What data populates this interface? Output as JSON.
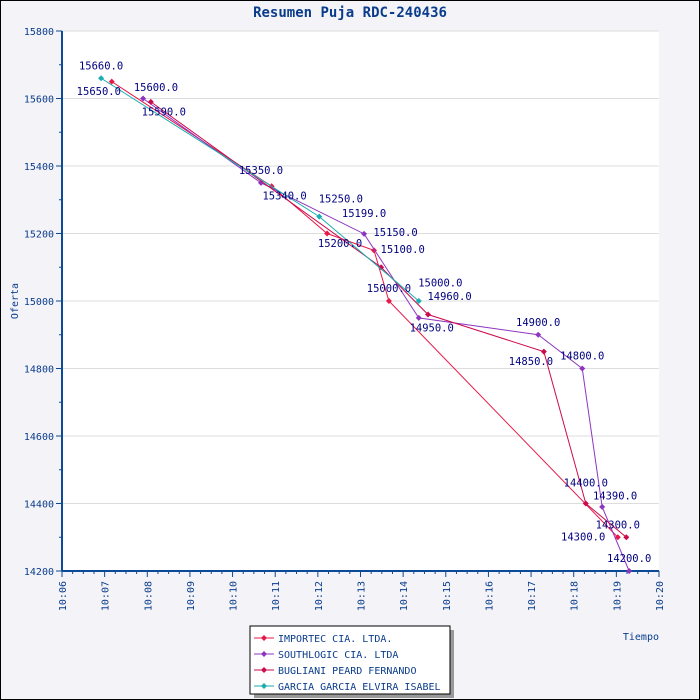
{
  "chart_data": {
    "type": "line",
    "title": "Resumen Puja RDC-240436",
    "xlabel": "Tiempo",
    "ylabel": "Oferta",
    "xlim": [
      "10:06",
      "10:20"
    ],
    "ylim": [
      14200,
      15800
    ],
    "x_ticks": [
      "10:06",
      "10:07",
      "10:08",
      "10:09",
      "10:10",
      "10:11",
      "10:12",
      "10:13",
      "10:14",
      "10:15",
      "10:16",
      "10:17",
      "10:18",
      "10:19",
      "10:20"
    ],
    "y_ticks": [
      14200,
      14400,
      14600,
      14800,
      15000,
      15200,
      15400,
      15600,
      15800
    ],
    "grid": "horizontal",
    "legend_placement": "bottom-center",
    "series": [
      {
        "name": "IMPORTEC CIA. LTDA.",
        "color": "#e8194a",
        "points": [
          [
            "10:07:10",
            15650
          ],
          [
            "10:10:55",
            15340
          ],
          [
            "10:12:13",
            15200
          ],
          [
            "10:13:19",
            15150
          ],
          [
            "10:13:40",
            15000
          ],
          [
            "10:19:02",
            14300
          ]
        ]
      },
      {
        "name": "SOUTHLOGIC CIA. LTDA",
        "color": "#8e35c0",
        "points": [
          [
            "10:07:54",
            15600
          ],
          [
            "10:10:40",
            15350
          ],
          [
            "10:13:05",
            15199
          ],
          [
            "10:14:22",
            14950
          ],
          [
            "10:17:10",
            14900
          ],
          [
            "10:18:12",
            14800
          ],
          [
            "10:18:40",
            14390
          ],
          [
            "10:19:18",
            14200
          ]
        ]
      },
      {
        "name": "BUGLIANI PEARD FERNANDO",
        "color": "#cc0a4c",
        "points": [
          [
            "10:08:05",
            15590
          ],
          [
            "10:13:29",
            15100
          ],
          [
            "10:14:35",
            14960
          ],
          [
            "10:17:18",
            14850
          ],
          [
            "10:18:17",
            14400
          ],
          [
            "10:19:14",
            14300
          ]
        ]
      },
      {
        "name": "GARCIA GARCIA ELVIRA ISABEL",
        "color": "#1aaeb0",
        "points": [
          [
            "10:06:55",
            15660
          ],
          [
            "10:12:02",
            15250
          ],
          [
            "10:14:22",
            15000
          ]
        ]
      }
    ]
  }
}
